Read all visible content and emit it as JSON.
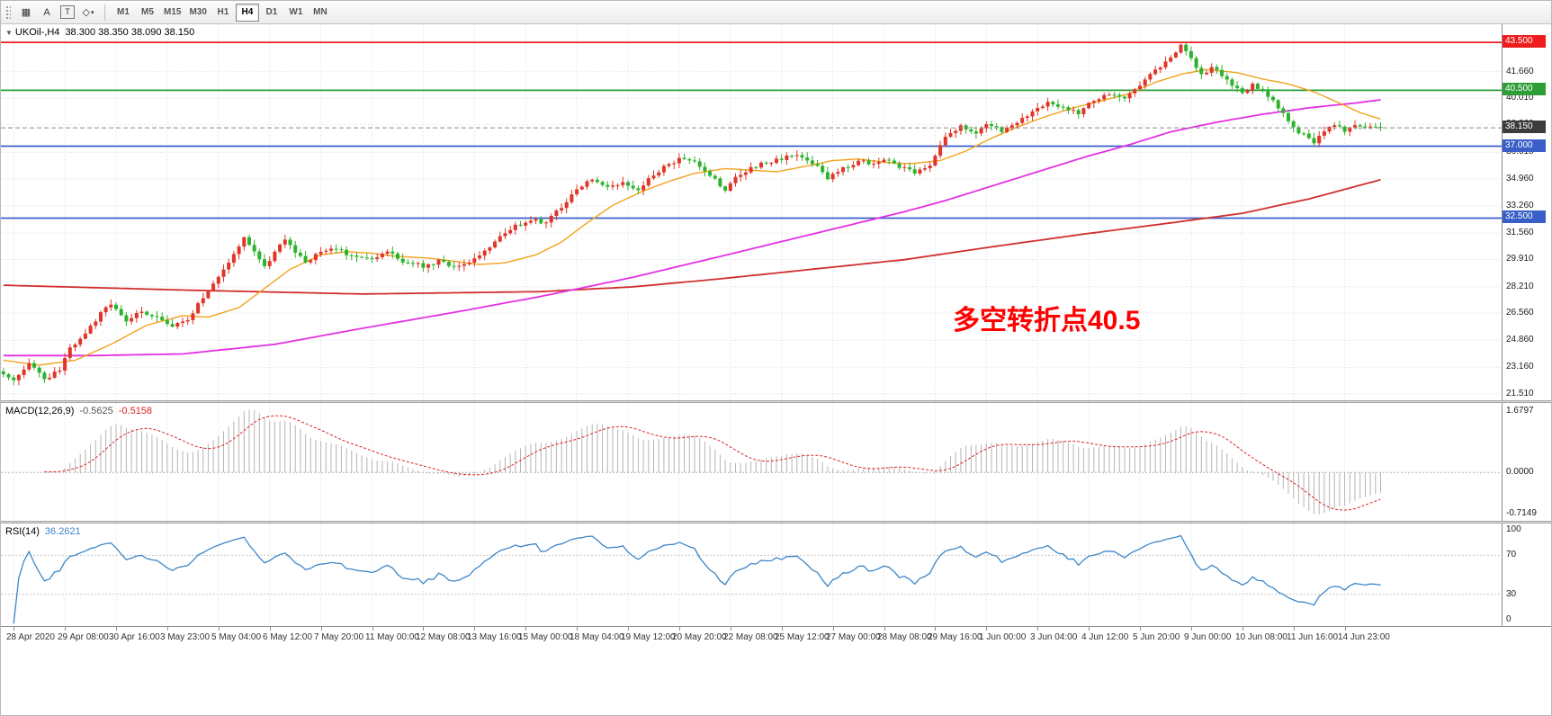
{
  "toolbar": {
    "tools": [
      {
        "name": "chart-grid",
        "glyph": "▦"
      },
      {
        "name": "label",
        "glyph": "A"
      },
      {
        "name": "text",
        "glyph": "T"
      },
      {
        "name": "shapes",
        "glyph": "◇"
      }
    ],
    "shapes_caret": "▾",
    "timeframes": [
      "M1",
      "M5",
      "M15",
      "M30",
      "H1",
      "H4",
      "D1",
      "W1",
      "MN"
    ],
    "active_timeframe": "H4"
  },
  "chart": {
    "dropdown_glyph": "▼",
    "symbol_label": "UKOil-,H4",
    "ohlc_text": "38.300 38.350 38.090 38.150",
    "annotation": {
      "text": "多空转折点40.5",
      "color": "#ff0000"
    },
    "current_price": {
      "label": "38.150",
      "value": 38.15,
      "badge_color": "#3c3c3c",
      "line_color": "#8a8a8a"
    },
    "hlines": [
      {
        "value": 43.5,
        "label": "43.500",
        "color": "#ee1c1c"
      },
      {
        "value": 40.5,
        "label": "40.500",
        "color": "#2e9e36"
      },
      {
        "value": 37.0,
        "label": "37.000",
        "color": "#3a5fc8"
      },
      {
        "value": 32.5,
        "label": "32.500",
        "color": "#3a5fc8"
      }
    ],
    "price_scale_labels": [
      "41.660",
      "40.010",
      "38.360",
      "36.610",
      "34.960",
      "33.260",
      "31.560",
      "29.910",
      "28.210",
      "26.560",
      "24.860",
      "23.160",
      "21.510"
    ]
  },
  "chart_data": {
    "type": "candlestick",
    "symbol": "UKOil-",
    "timeframe": "H4",
    "num_candles": 270,
    "last_close": 38.15,
    "price_range": [
      21.1,
      44.63
    ],
    "up_color": "#e03528",
    "down_color": "#2bb32b",
    "close_keypoints": [
      [
        0,
        22.8
      ],
      [
        2,
        22.3
      ],
      [
        5,
        23.4
      ],
      [
        8,
        22.4
      ],
      [
        11,
        23.0
      ],
      [
        13,
        24.4
      ],
      [
        16,
        25.2
      ],
      [
        19,
        26.6
      ],
      [
        21,
        27.2
      ],
      [
        24,
        26.0
      ],
      [
        27,
        26.7
      ],
      [
        30,
        26.3
      ],
      [
        33,
        25.7
      ],
      [
        36,
        26.2
      ],
      [
        39,
        27.5
      ],
      [
        42,
        28.8
      ],
      [
        45,
        30.2
      ],
      [
        47,
        31.2
      ],
      [
        49,
        30.5
      ],
      [
        51,
        29.5
      ],
      [
        53,
        30.3
      ],
      [
        55,
        31.2
      ],
      [
        57,
        30.4
      ],
      [
        59,
        29.8
      ],
      [
        62,
        30.3
      ],
      [
        65,
        30.6
      ],
      [
        68,
        30.1
      ],
      [
        72,
        29.9
      ],
      [
        75,
        30.4
      ],
      [
        78,
        29.8
      ],
      [
        82,
        29.5
      ],
      [
        85,
        29.8
      ],
      [
        88,
        29.5
      ],
      [
        92,
        29.9
      ],
      [
        95,
        30.6
      ],
      [
        97,
        31.4
      ],
      [
        100,
        32.0
      ],
      [
        103,
        32.4
      ],
      [
        106,
        32.2
      ],
      [
        109,
        33.2
      ],
      [
        112,
        34.3
      ],
      [
        115,
        35.0
      ],
      [
        118,
        34.4
      ],
      [
        121,
        34.8
      ],
      [
        124,
        34.3
      ],
      [
        127,
        35.2
      ],
      [
        130,
        35.9
      ],
      [
        133,
        36.3
      ],
      [
        136,
        35.8
      ],
      [
        139,
        34.9
      ],
      [
        141,
        34.3
      ],
      [
        143,
        35.0
      ],
      [
        146,
        35.6
      ],
      [
        149,
        36.0
      ],
      [
        152,
        36.2
      ],
      [
        155,
        36.5
      ],
      [
        158,
        36.0
      ],
      [
        161,
        35.0
      ],
      [
        164,
        35.6
      ],
      [
        167,
        36.1
      ],
      [
        170,
        35.8
      ],
      [
        172,
        36.2
      ],
      [
        175,
        35.7
      ],
      [
        178,
        35.4
      ],
      [
        181,
        35.9
      ],
      [
        184,
        37.6
      ],
      [
        187,
        38.2
      ],
      [
        190,
        37.9
      ],
      [
        192,
        38.3
      ],
      [
        195,
        38.0
      ],
      [
        198,
        38.5
      ],
      [
        201,
        39.2
      ],
      [
        204,
        39.8
      ],
      [
        207,
        39.4
      ],
      [
        210,
        39.1
      ],
      [
        213,
        39.9
      ],
      [
        216,
        40.3
      ],
      [
        219,
        40.1
      ],
      [
        222,
        40.9
      ],
      [
        225,
        41.7
      ],
      [
        228,
        42.6
      ],
      [
        230,
        43.3
      ],
      [
        232,
        42.5
      ],
      [
        234,
        41.4
      ],
      [
        236,
        41.9
      ],
      [
        238,
        41.5
      ],
      [
        240,
        40.9
      ],
      [
        242,
        40.4
      ],
      [
        244,
        40.8
      ],
      [
        246,
        40.5
      ],
      [
        248,
        39.9
      ],
      [
        250,
        39.0
      ],
      [
        252,
        38.1
      ],
      [
        254,
        37.7
      ],
      [
        256,
        37.3
      ],
      [
        258,
        37.9
      ],
      [
        260,
        38.3
      ],
      [
        262,
        38.0
      ],
      [
        264,
        38.3
      ],
      [
        266,
        38.1
      ],
      [
        268,
        38.3
      ],
      [
        269,
        38.15
      ]
    ],
    "ma_fast": {
      "color": "#f2a21c",
      "keypoints": [
        [
          0,
          23.6
        ],
        [
          7,
          23.3
        ],
        [
          14,
          23.6
        ],
        [
          21,
          24.6
        ],
        [
          28,
          25.8
        ],
        [
          35,
          26.4
        ],
        [
          40,
          26.3
        ],
        [
          46,
          26.9
        ],
        [
          51,
          28.1
        ],
        [
          56,
          29.3
        ],
        [
          62,
          30.2
        ],
        [
          67,
          30.4
        ],
        [
          72,
          30.3
        ],
        [
          77,
          30.1
        ],
        [
          83,
          30.0
        ],
        [
          88,
          29.8
        ],
        [
          93,
          29.6
        ],
        [
          98,
          29.7
        ],
        [
          104,
          30.2
        ],
        [
          109,
          31.0
        ],
        [
          114,
          32.2
        ],
        [
          119,
          33.3
        ],
        [
          125,
          34.2
        ],
        [
          130,
          34.8
        ],
        [
          135,
          35.3
        ],
        [
          141,
          35.6
        ],
        [
          146,
          35.5
        ],
        [
          151,
          35.4
        ],
        [
          156,
          35.7
        ],
        [
          162,
          36.1
        ],
        [
          167,
          36.2
        ],
        [
          172,
          36.0
        ],
        [
          177,
          35.9
        ],
        [
          183,
          36.1
        ],
        [
          188,
          36.7
        ],
        [
          193,
          37.5
        ],
        [
          198,
          38.2
        ],
        [
          204,
          38.9
        ],
        [
          209,
          39.4
        ],
        [
          214,
          39.8
        ],
        [
          220,
          40.3
        ],
        [
          225,
          41.0
        ],
        [
          230,
          41.5
        ],
        [
          235,
          41.8
        ],
        [
          241,
          41.6
        ],
        [
          246,
          41.2
        ],
        [
          251,
          40.9
        ],
        [
          256,
          40.4
        ],
        [
          261,
          39.7
        ],
        [
          265,
          39.1
        ],
        [
          269,
          38.7
        ]
      ]
    },
    "ma_mid": {
      "color": "#e331e3",
      "keypoints": [
        [
          0,
          23.9
        ],
        [
          18,
          23.9
        ],
        [
          35,
          24.0
        ],
        [
          53,
          24.6
        ],
        [
          70,
          25.6
        ],
        [
          88,
          26.6
        ],
        [
          105,
          27.6
        ],
        [
          123,
          28.8
        ],
        [
          140,
          30.1
        ],
        [
          149,
          30.8
        ],
        [
          158,
          31.5
        ],
        [
          167,
          32.2
        ],
        [
          176,
          32.9
        ],
        [
          184,
          33.6
        ],
        [
          193,
          34.5
        ],
        [
          202,
          35.4
        ],
        [
          211,
          36.3
        ],
        [
          220,
          37.1
        ],
        [
          228,
          37.9
        ],
        [
          237,
          38.5
        ],
        [
          246,
          39.0
        ],
        [
          255,
          39.4
        ],
        [
          264,
          39.7
        ],
        [
          269,
          39.9
        ]
      ]
    },
    "ma_slow": {
      "color": "#d12f2f",
      "keypoints": [
        [
          0,
          28.3
        ],
        [
          35,
          28.0
        ],
        [
          70,
          27.75
        ],
        [
          105,
          27.9
        ],
        [
          123,
          28.2
        ],
        [
          140,
          28.7
        ],
        [
          158,
          29.3
        ],
        [
          176,
          29.9
        ],
        [
          193,
          30.7
        ],
        [
          211,
          31.5
        ],
        [
          228,
          32.2
        ],
        [
          242,
          32.8
        ],
        [
          255,
          33.7
        ],
        [
          269,
          34.9
        ]
      ]
    }
  },
  "macd": {
    "title": "MACD(12,26,9)",
    "main_value": "-0.5625",
    "signal_value": "-0.5158",
    "scale_labels": [
      "1.6797",
      "0.0000",
      "-0.7149"
    ],
    "bar_color": "#b4b4b4",
    "signal_color": "#dd2222"
  },
  "rsi": {
    "title": "RSI(14)",
    "value": "36.2621",
    "scale_labels": [
      "100",
      "70",
      "30",
      "0"
    ],
    "levels": [
      70,
      30
    ],
    "line_color": "#3c86c8"
  },
  "time_axis": {
    "first_label_bar": 2,
    "label_step_bars": 10,
    "labels": [
      "28 Apr 2020",
      "29 Apr 08:00",
      "30 Apr 16:00",
      "3 May 23:00",
      "5 May 04:00",
      "6 May 12:00",
      "7 May 20:00",
      "11 May 00:00",
      "12 May 08:00",
      "13 May 16:00",
      "15 May 00:00",
      "18 May 04:00",
      "19 May 12:00",
      "20 May 20:00",
      "22 May 08:00",
      "25 May 12:00",
      "27 May 00:00",
      "28 May 08:00",
      "29 May 16:00",
      "1 Jun 00:00",
      "3 Jun 04:00",
      "4 Jun 12:00",
      "5 Jun 20:00",
      "9 Jun 00:00",
      "10 Jun 08:00",
      "11 Jun 16:00",
      "14 Jun 23:00"
    ]
  }
}
